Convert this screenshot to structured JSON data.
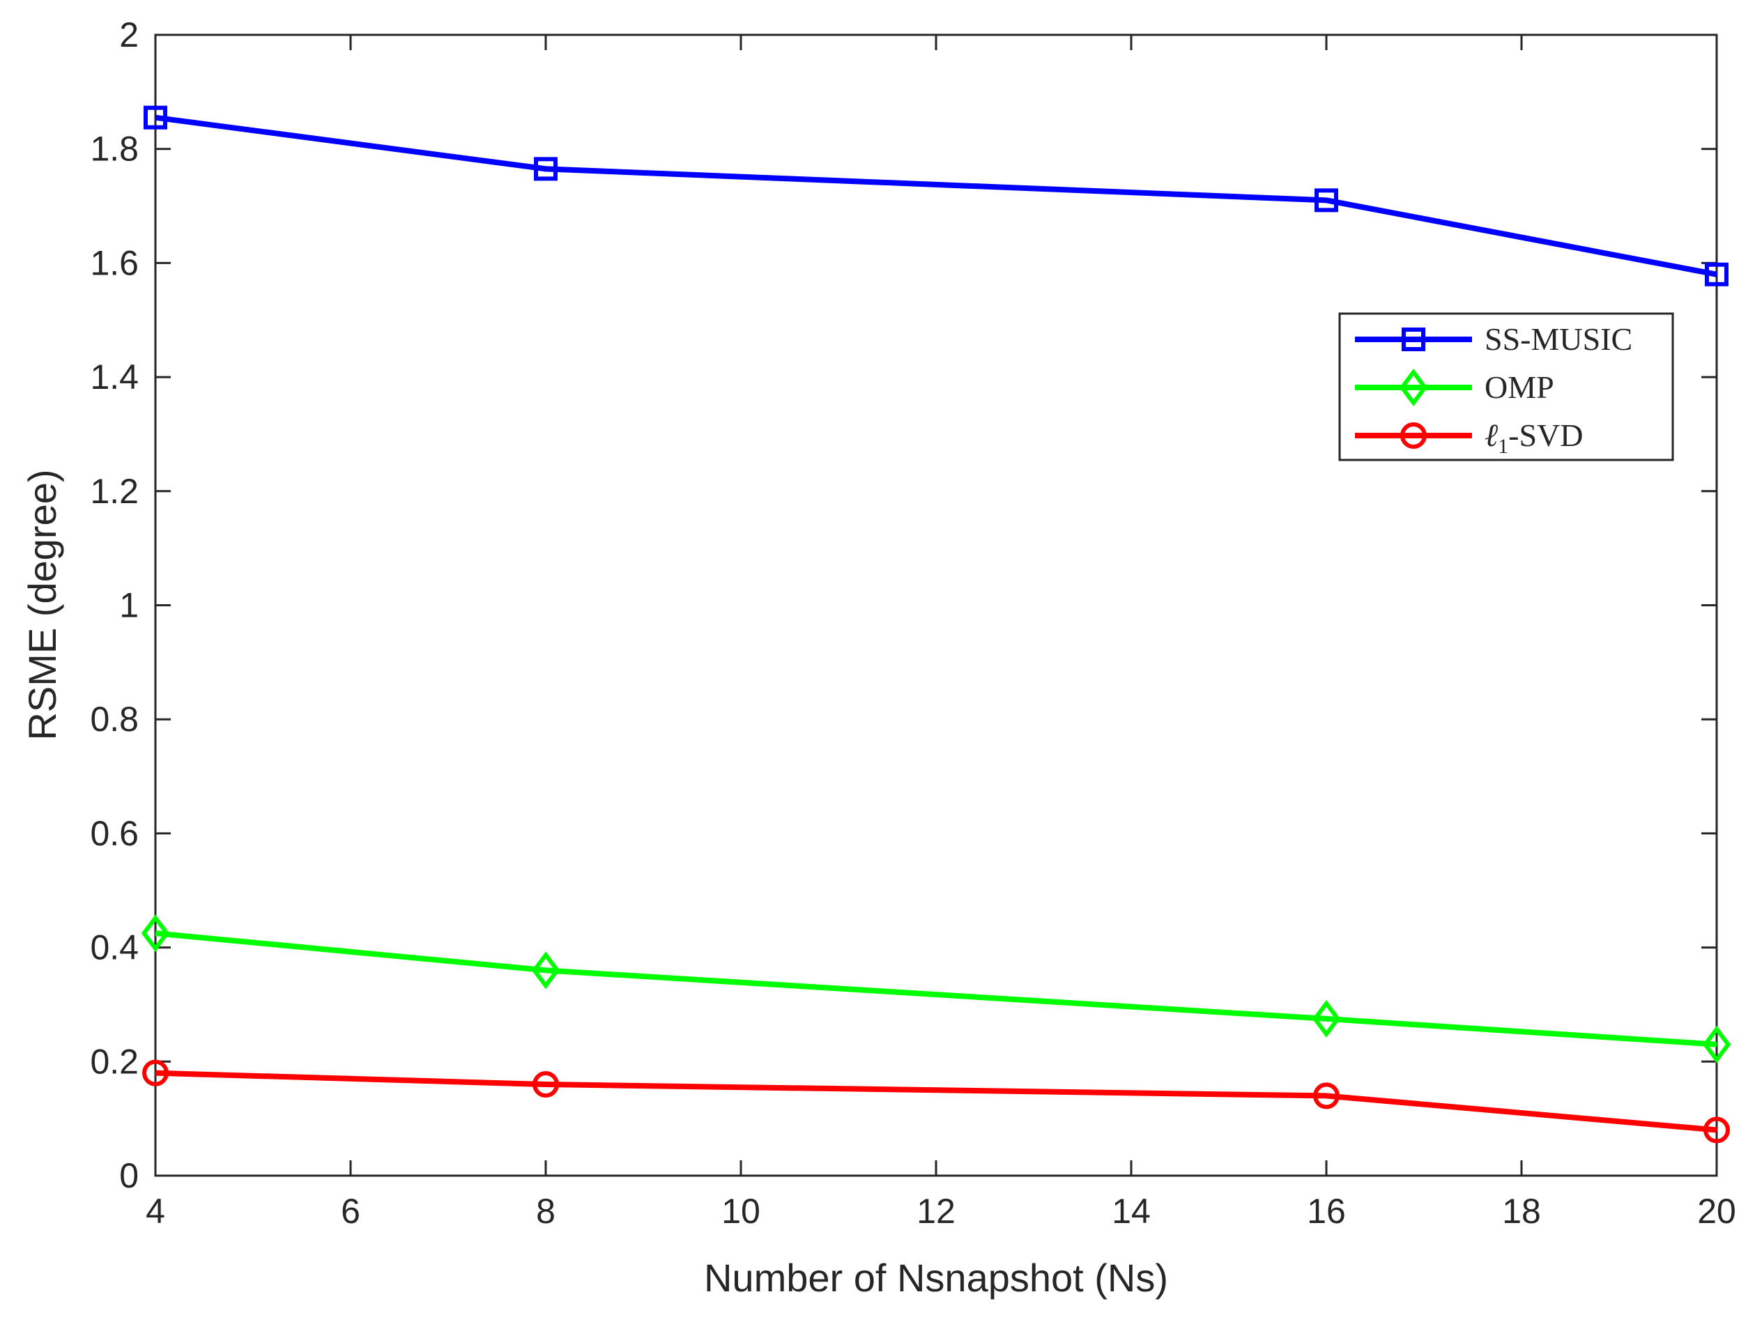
{
  "chart_data": {
    "type": "line",
    "title": "",
    "xlabel": "Number of Nsnapshot (Ns)",
    "ylabel": "RSME (degree)",
    "xlim": [
      4,
      20
    ],
    "ylim": [
      0,
      2
    ],
    "xticks": [
      4,
      6,
      8,
      10,
      12,
      14,
      16,
      18,
      20
    ],
    "yticks": [
      0,
      0.2,
      0.4,
      0.6,
      0.8,
      1,
      1.2,
      1.4,
      1.6,
      1.8,
      2
    ],
    "xtick_labels": [
      "4",
      "6",
      "8",
      "10",
      "12",
      "14",
      "16",
      "18",
      "20"
    ],
    "ytick_labels": [
      "0",
      "0.2",
      "0.4",
      "0.6",
      "0.8",
      "1",
      "1.2",
      "1.4",
      "1.6",
      "1.8",
      "2"
    ],
    "grid": false,
    "legend_position": "top-right",
    "x": [
      4,
      8,
      16,
      20
    ],
    "series": [
      {
        "name": "SS-MUSIC",
        "color": "#0000ff",
        "marker": "square",
        "values": [
          1.855,
          1.765,
          1.71,
          1.58
        ]
      },
      {
        "name": "OMP",
        "color": "#00ff00",
        "marker": "diamond",
        "values": [
          0.425,
          0.36,
          0.275,
          0.23
        ]
      },
      {
        "name": "ℓ1-SVD",
        "name_main": "ℓ",
        "name_sub": "1",
        "name_suffix": "-SVD",
        "color": "#ff0000",
        "marker": "circle",
        "values": [
          0.18,
          0.16,
          0.14,
          0.08
        ]
      }
    ]
  }
}
